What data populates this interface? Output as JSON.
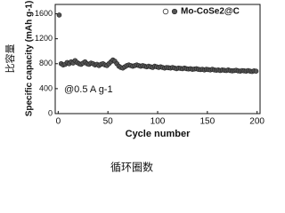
{
  "chart_data": {
    "type": "scatter",
    "ylabel": "Specific capacity (mAh g-1)",
    "ylabel_cn": "比容量",
    "xlabel": "Cycle number",
    "xlabel_cn": "循环圈数",
    "annotation": "@0.5 A g-1",
    "x": [
      1,
      3,
      5,
      7,
      9,
      11,
      13,
      15,
      17,
      19,
      21,
      23,
      25,
      27,
      29,
      31,
      33,
      35,
      37,
      39,
      41,
      43,
      45,
      47,
      49,
      51,
      53,
      55,
      57,
      59,
      61,
      63,
      65,
      67,
      69,
      71,
      73,
      75,
      77,
      79,
      81,
      83,
      85,
      87,
      89,
      91,
      93,
      95,
      97,
      99,
      101,
      103,
      105,
      107,
      109,
      111,
      113,
      115,
      117,
      119,
      121,
      123,
      125,
      127,
      129,
      131,
      133,
      135,
      137,
      139,
      141,
      143,
      145,
      147,
      149,
      151,
      153,
      155,
      157,
      159,
      161,
      163,
      165,
      167,
      169,
      171,
      173,
      175,
      177,
      179,
      181,
      183,
      185,
      187,
      189,
      191,
      193,
      195,
      197,
      199
    ],
    "series": [
      {
        "name": "Mo-CoSe2@C",
        "color": "#555555",
        "values": [
          1580,
          800,
          780,
          790,
          820,
          800,
          830,
          810,
          850,
          820,
          800,
          790,
          810,
          830,
          800,
          790,
          810,
          800,
          780,
          790,
          770,
          790,
          800,
          780,
          770,
          800,
          830,
          860,
          840,
          800,
          760,
          740,
          730,
          750,
          770,
          780,
          770,
          760,
          770,
          780,
          770,
          760,
          770,
          760,
          750,
          760,
          750,
          740,
          760,
          750,
          740,
          750,
          740,
          730,
          740,
          735,
          730,
          740,
          730,
          720,
          730,
          725,
          720,
          730,
          720,
          715,
          720,
          710,
          715,
          720,
          710,
          705,
          710,
          700,
          710,
          705,
          700,
          710,
          700,
          695,
          700,
          690,
          700,
          695,
          690,
          700,
          690,
          685,
          690,
          695,
          685,
          680,
          690,
          685,
          680,
          690,
          680,
          675,
          685,
          680
        ]
      }
    ],
    "xlim": [
      -3,
      203
    ],
    "xticks": [
      0,
      50,
      100,
      150,
      200
    ],
    "ylim": [
      0,
      1750
    ],
    "yticks": [
      0,
      400,
      800,
      1200,
      1600
    ]
  }
}
